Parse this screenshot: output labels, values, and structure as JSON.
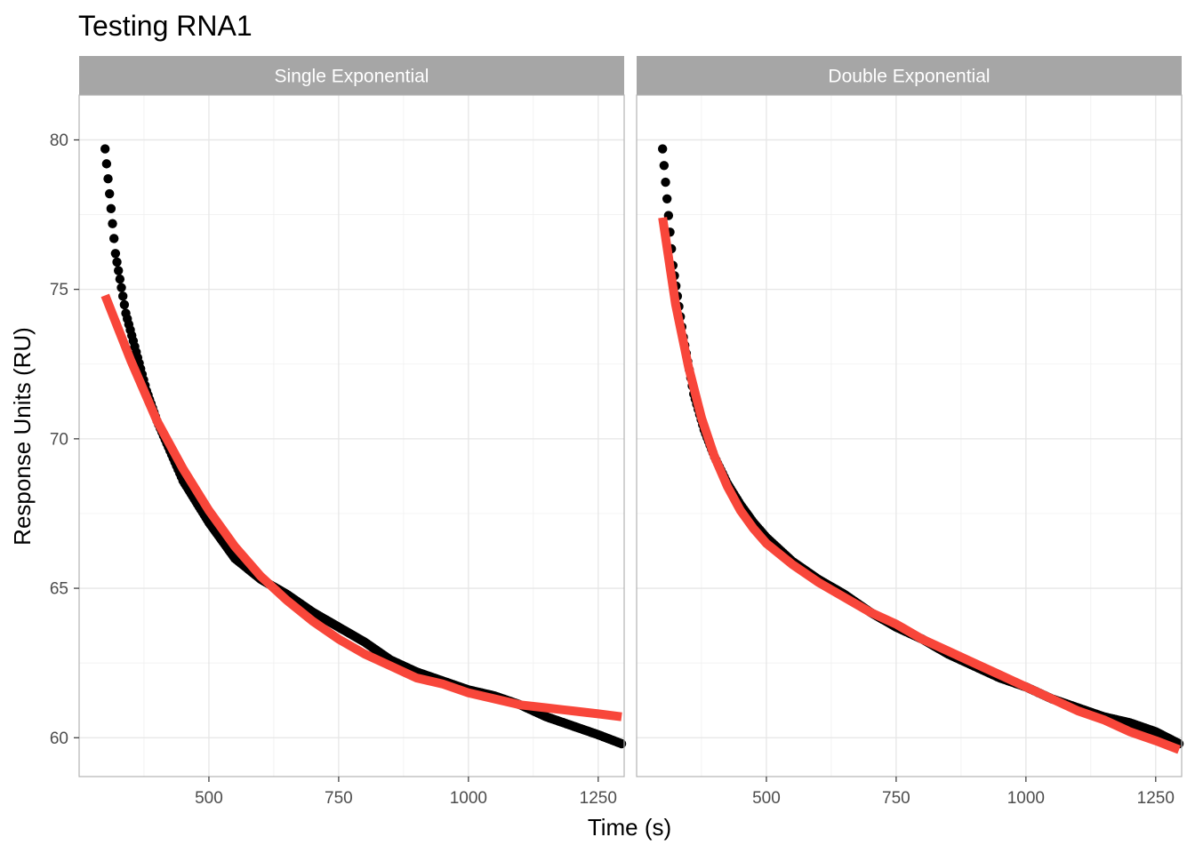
{
  "chart_data": {
    "type": "scatter",
    "title": "Testing RNA1",
    "xlabel": "Time (s)",
    "ylabel": "Response Units (RU)",
    "xlim": [
      250,
      1300
    ],
    "ylim": [
      58.7,
      81.5
    ],
    "x_ticks": [
      500,
      750,
      1000,
      1250
    ],
    "y_ticks": [
      60,
      65,
      70,
      75,
      80
    ],
    "grid": true,
    "colors": {
      "points": "#000000",
      "fit": "#f8463a",
      "strip": "#a6a6a6",
      "grid": "#e6e6e6",
      "panel_border": "#b3b3b3"
    },
    "panels": [
      {
        "strip_label": "Single Exponential",
        "observed": {
          "x": [
            300,
            320,
            340,
            360,
            380,
            400,
            425,
            450,
            475,
            500,
            550,
            600,
            650,
            700,
            750,
            800,
            850,
            900,
            950,
            1000,
            1050,
            1100,
            1150,
            1200,
            1250,
            1295
          ],
          "y": [
            79.7,
            76.2,
            74.2,
            72.9,
            71.6,
            70.6,
            69.6,
            68.6,
            67.9,
            67.2,
            66.0,
            65.3,
            64.8,
            64.2,
            63.7,
            63.2,
            62.6,
            62.2,
            61.9,
            61.6,
            61.4,
            61.1,
            60.7,
            60.4,
            60.1,
            59.8
          ]
        },
        "fit": {
          "x": [
            300,
            350,
            400,
            450,
            500,
            550,
            600,
            650,
            700,
            750,
            800,
            850,
            900,
            950,
            1000,
            1050,
            1100,
            1150,
            1200,
            1250,
            1295
          ],
          "y": [
            74.8,
            72.6,
            70.6,
            69.0,
            67.6,
            66.4,
            65.4,
            64.6,
            63.9,
            63.3,
            62.8,
            62.4,
            62.0,
            61.8,
            61.5,
            61.3,
            61.1,
            61.0,
            60.9,
            60.8,
            60.7
          ]
        }
      },
      {
        "strip_label": "Double Exponential",
        "observed": {
          "x": [
            300,
            320,
            340,
            360,
            380,
            400,
            425,
            450,
            475,
            500,
            550,
            600,
            650,
            700,
            750,
            800,
            850,
            900,
            950,
            1000,
            1050,
            1100,
            1150,
            1200,
            1250,
            1295
          ],
          "y": [
            79.7,
            75.8,
            73.4,
            71.5,
            70.3,
            69.4,
            68.5,
            67.8,
            67.2,
            66.7,
            65.9,
            65.3,
            64.8,
            64.2,
            63.7,
            63.3,
            62.8,
            62.4,
            62.0,
            61.7,
            61.3,
            61.0,
            60.7,
            60.5,
            60.2,
            59.8
          ]
        },
        "fit": {
          "x": [
            300,
            325,
            350,
            375,
            400,
            425,
            450,
            475,
            500,
            550,
            600,
            650,
            700,
            750,
            800,
            850,
            900,
            950,
            1000,
            1050,
            1100,
            1150,
            1200,
            1250,
            1295
          ],
          "y": [
            77.4,
            74.5,
            72.4,
            70.7,
            69.4,
            68.4,
            67.6,
            67.0,
            66.5,
            65.8,
            65.2,
            64.7,
            64.2,
            63.8,
            63.3,
            62.9,
            62.5,
            62.1,
            61.7,
            61.3,
            60.9,
            60.6,
            60.2,
            59.9,
            59.6
          ]
        }
      }
    ]
  }
}
